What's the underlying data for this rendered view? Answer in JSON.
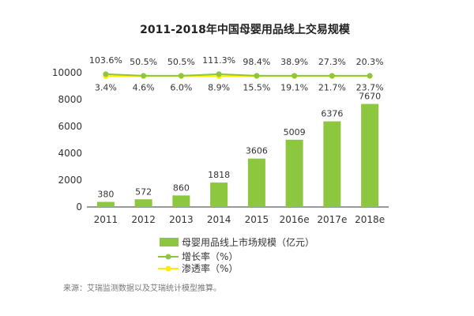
{
  "chart_data": {
    "type": "bar",
    "title": "2011-2018年中国母婴用品线上交易规模",
    "categories": [
      "2011",
      "2012",
      "2013",
      "2014",
      "2015",
      "2016e",
      "2017e",
      "2018e"
    ],
    "ylim": [
      0,
      10000
    ],
    "yticks": [
      "0",
      "2000",
      "4000",
      "6000",
      "8000",
      "10000"
    ],
    "grid": false,
    "legend_position": "bottom",
    "series": [
      {
        "name": "母婴用品线上市场规模（亿元）",
        "type": "bar",
        "color": "#8dc63f",
        "values": [
          380,
          572,
          860,
          1818,
          3606,
          5009,
          6376,
          7670
        ],
        "labels": [
          "380",
          "572",
          "860",
          "1818",
          "3606",
          "5009",
          "6376",
          "7670"
        ]
      },
      {
        "name": "增长率（%）",
        "type": "line",
        "color": "#8dc63f",
        "values": [
          103.6,
          50.5,
          50.5,
          111.3,
          98.4,
          38.9,
          27.3,
          20.3
        ],
        "labels": [
          "103.6%",
          "50.5%",
          "50.5%",
          "111.3%",
          "98.4%",
          "38.9%",
          "27.3%",
          "20.3%"
        ]
      },
      {
        "name": "渗透率（%）",
        "type": "line",
        "color": "#ffee00",
        "values": [
          3.4,
          4.6,
          6.0,
          8.9,
          15.5,
          19.1,
          21.7,
          23.7
        ],
        "labels": [
          "3.4%",
          "4.6%",
          "6.0%",
          "8.9%",
          "15.5%",
          "19.1%",
          "21.7%",
          "23.7%"
        ]
      }
    ]
  },
  "source": "来源：艾瑞监测数据以及艾瑞统计模型推算。"
}
